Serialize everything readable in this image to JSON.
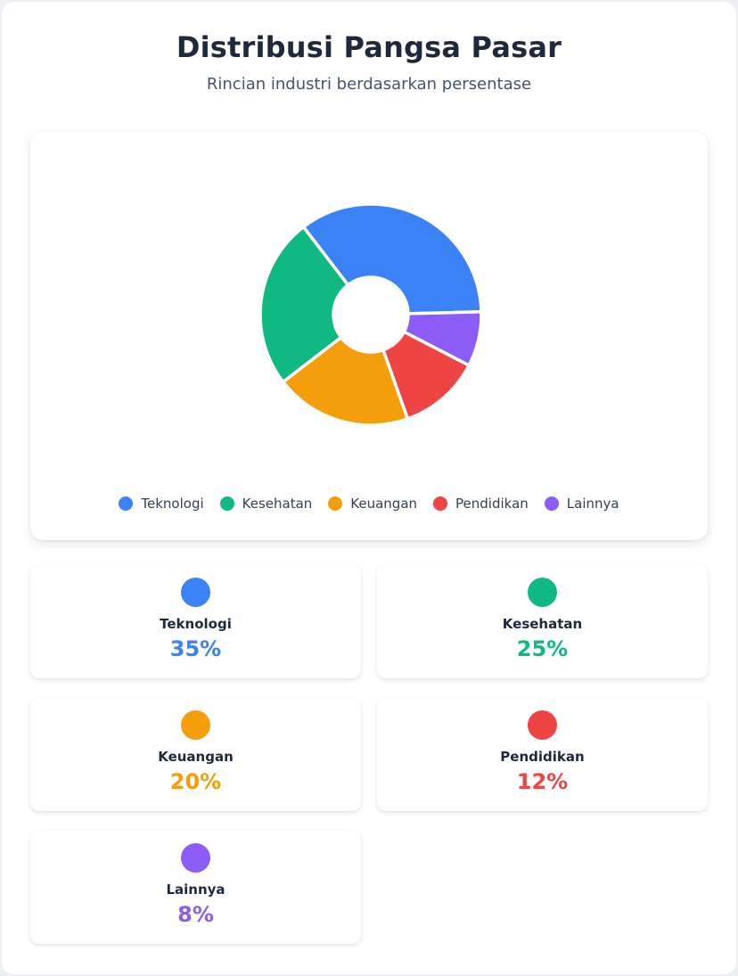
{
  "header": {
    "title": "Distribusi Pangsa Pasar",
    "subtitle": "Rincian industri berdasarkan persentase"
  },
  "chart_data": {
    "type": "pie",
    "donut": true,
    "title": "Distribusi Pangsa Pasar",
    "subtitle": "Rincian industri berdasarkan persentase",
    "categories": [
      "Teknologi",
      "Kesehatan",
      "Keuangan",
      "Pendidikan",
      "Lainnya"
    ],
    "values": [
      35,
      25,
      20,
      12,
      8
    ],
    "unit": "%",
    "colors": [
      "#3b82f6",
      "#10b981",
      "#f59e0b",
      "#ef4444",
      "#8b5cf6"
    ],
    "legend_position": "bottom"
  },
  "legend": [
    {
      "label": "Teknologi",
      "color": "#3b82f6"
    },
    {
      "label": "Kesehatan",
      "color": "#10b981"
    },
    {
      "label": "Keuangan",
      "color": "#f59e0b"
    },
    {
      "label": "Pendidikan",
      "color": "#ef4444"
    },
    {
      "label": "Lainnya",
      "color": "#8b5cf6"
    }
  ],
  "stats": [
    {
      "name": "Teknologi",
      "value": "35%",
      "color": "#3b82f6"
    },
    {
      "name": "Kesehatan",
      "value": "25%",
      "color": "#10b981"
    },
    {
      "name": "Keuangan",
      "value": "20%",
      "color": "#f59e0b"
    },
    {
      "name": "Pendidikan",
      "value": "12%",
      "color": "#ef4444"
    },
    {
      "name": "Lainnya",
      "value": "8%",
      "color": "#8b5cf6"
    }
  ]
}
